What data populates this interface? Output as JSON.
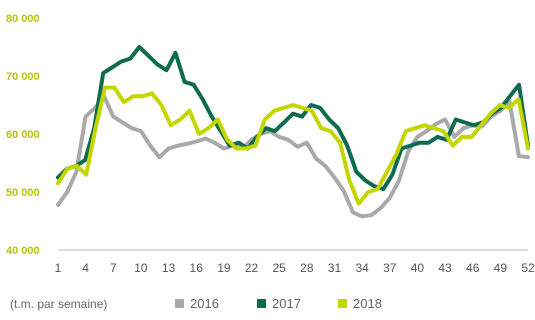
{
  "chart_data": {
    "type": "line",
    "xlabel": "",
    "ylabel": "",
    "unit_label": "(t.m. par semaine)",
    "ylim": [
      40000,
      80000
    ],
    "xlim": [
      1,
      52
    ],
    "y_ticks": [
      {
        "value": 40000,
        "label": "40 000"
      },
      {
        "value": 50000,
        "label": "50 000"
      },
      {
        "value": 60000,
        "label": "60 000"
      },
      {
        "value": 70000,
        "label": "70 000"
      },
      {
        "value": 80000,
        "label": "80 000"
      }
    ],
    "x_ticks": [
      1,
      4,
      7,
      10,
      13,
      16,
      19,
      22,
      25,
      28,
      31,
      34,
      37,
      40,
      43,
      46,
      49,
      52
    ],
    "grid": false,
    "legend_position": "bottom",
    "series": [
      {
        "name": "2016",
        "color": "#a9a9a9",
        "values": [
          47800,
          50000,
          53500,
          63000,
          64500,
          66500,
          63000,
          62000,
          61000,
          60500,
          58000,
          56000,
          57500,
          58000,
          58300,
          58700,
          59200,
          58500,
          57500,
          58000,
          57500,
          59000,
          60000,
          60500,
          59500,
          59000,
          57800,
          58500,
          55800,
          54500,
          52500,
          50200,
          46500,
          45800,
          46000,
          47200,
          49000,
          52000,
          57000,
          59500,
          60500,
          61700,
          62500,
          59500,
          61000,
          61500,
          61300,
          63000,
          64000,
          65500,
          56200,
          56000
        ]
      },
      {
        "name": "2017",
        "color": "#0f6b4f",
        "values": [
          52500,
          54000,
          54500,
          55500,
          61000,
          70500,
          71500,
          72500,
          73000,
          75000,
          73500,
          72000,
          71000,
          74000,
          69000,
          68500,
          66000,
          63000,
          60500,
          58000,
          58500,
          57500,
          59500,
          61000,
          60500,
          62000,
          63500,
          63000,
          65000,
          64500,
          62500,
          61000,
          58000,
          53500,
          52000,
          51000,
          50500,
          53000,
          57500,
          58000,
          58500,
          58500,
          59500,
          59000,
          62500,
          62000,
          61500,
          62000,
          63500,
          64500,
          66500,
          68500,
          58000
        ]
      },
      {
        "name": "2018",
        "color": "#c4d600",
        "values": [
          51500,
          54000,
          54500,
          53000,
          61000,
          68000,
          68000,
          65500,
          66500,
          66500,
          67000,
          65000,
          61500,
          62500,
          64000,
          60000,
          61000,
          62500,
          59000,
          57500,
          57500,
          58000,
          62500,
          64000,
          64500,
          65000,
          64500,
          64000,
          61000,
          60500,
          58500,
          52000,
          48000,
          50000,
          50500,
          53500,
          56500,
          60500,
          61000,
          61500,
          61000,
          60500,
          58000,
          59500,
          59500,
          61500,
          63500,
          65000,
          64500,
          66000,
          57500
        ]
      }
    ]
  }
}
